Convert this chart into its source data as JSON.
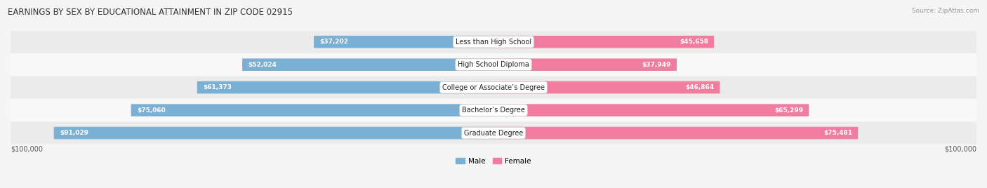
{
  "title": "EARNINGS BY SEX BY EDUCATIONAL ATTAINMENT IN ZIP CODE 02915",
  "source": "Source: ZipAtlas.com",
  "categories": [
    "Less than High School",
    "High School Diploma",
    "College or Associate’s Degree",
    "Bachelor’s Degree",
    "Graduate Degree"
  ],
  "male_values": [
    37202,
    52024,
    61373,
    75060,
    91029
  ],
  "female_values": [
    45658,
    37949,
    46864,
    65299,
    75481
  ],
  "male_color": "#7bafd4",
  "female_color": "#f07ca0",
  "max_value": 100000,
  "bg_color": "#f5f5f5",
  "row_colors": [
    "#ebebeb",
    "#f8f8f8"
  ],
  "bar_height": 0.52,
  "xlabel_left": "$100,000",
  "xlabel_right": "$100,000"
}
